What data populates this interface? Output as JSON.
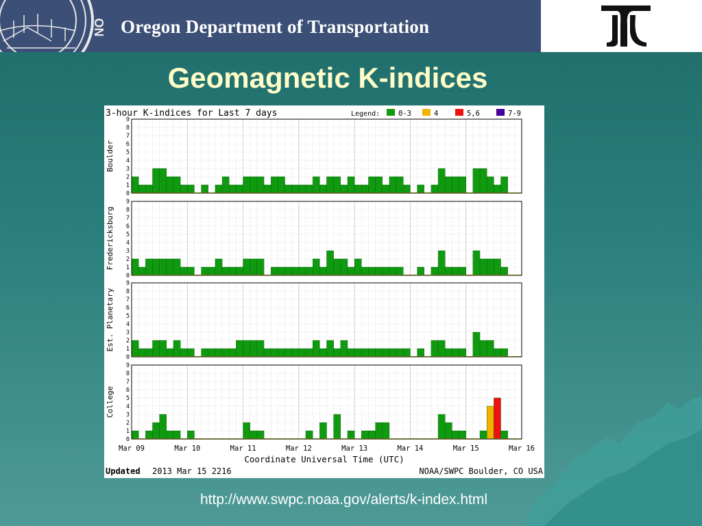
{
  "header": {
    "seal_text": "ON",
    "agency": "Oregon Department of Transportation"
  },
  "slide": {
    "title": "Geomagnetic K-indices",
    "url": "http://www.swpc.noaa.gov/alerts/k-index.html"
  },
  "chart_data": {
    "type": "bar",
    "title": "3-hour K-indices for Last 7 days",
    "legend_label": "Legend:",
    "legend": [
      {
        "label": "0-3",
        "color": "#109a10"
      },
      {
        "label": "4",
        "color": "#f0b400"
      },
      {
        "label": "5,6",
        "color": "#ee1111"
      },
      {
        "label": "7-9",
        "color": "#440099"
      }
    ],
    "legend_placement": "top-right",
    "ylim": [
      0,
      9
    ],
    "y_ticks": [
      "0",
      "1",
      "2",
      "3",
      "4",
      "5",
      "6",
      "7",
      "8",
      "9"
    ],
    "x_tick_labels": [
      "Mar 09",
      "Mar 10",
      "Mar 11",
      "Mar 12",
      "Mar 13",
      "Mar 14",
      "Mar 15",
      "Mar 16"
    ],
    "xlabel": "Coordinate Universal Time (UTC)",
    "grid": true,
    "intervals_per_day": 8,
    "panels": [
      {
        "station": "Boulder",
        "values": [
          2,
          1,
          1,
          3,
          3,
          2,
          2,
          1,
          1,
          0,
          1,
          0,
          1,
          2,
          1,
          1,
          2,
          2,
          2,
          1,
          2,
          2,
          1,
          1,
          1,
          1,
          2,
          1,
          2,
          2,
          1,
          2,
          1,
          1,
          2,
          2,
          1,
          2,
          2,
          1,
          0,
          1,
          0,
          1,
          3,
          2,
          2,
          2,
          0,
          3,
          3,
          2,
          1,
          2,
          0,
          0
        ]
      },
      {
        "station": "Fredericksburg",
        "values": [
          2,
          1,
          2,
          2,
          2,
          2,
          2,
          1,
          1,
          0,
          1,
          1,
          2,
          1,
          1,
          1,
          2,
          2,
          2,
          0,
          1,
          1,
          1,
          1,
          1,
          1,
          2,
          1,
          3,
          2,
          2,
          1,
          2,
          1,
          1,
          1,
          1,
          1,
          1,
          0,
          0,
          1,
          0,
          1,
          3,
          1,
          1,
          1,
          0,
          3,
          2,
          2,
          2,
          1,
          0,
          0
        ]
      },
      {
        "station": "Est. Planetary",
        "values": [
          2,
          1,
          1,
          2,
          2,
          1,
          2,
          1,
          1,
          0,
          1,
          1,
          1,
          1,
          1,
          2,
          2,
          2,
          2,
          1,
          1,
          1,
          1,
          1,
          1,
          1,
          2,
          1,
          2,
          1,
          2,
          1,
          1,
          1,
          1,
          1,
          1,
          1,
          1,
          1,
          0,
          1,
          0,
          2,
          2,
          1,
          1,
          1,
          0,
          3,
          2,
          2,
          1,
          1,
          0,
          0
        ]
      },
      {
        "station": "College",
        "values": [
          1,
          0,
          1,
          2,
          3,
          1,
          1,
          0,
          1,
          0,
          0,
          0,
          0,
          0,
          0,
          0,
          2,
          1,
          1,
          0,
          0,
          0,
          0,
          0,
          0,
          1,
          0,
          2,
          0,
          3,
          0,
          1,
          0,
          1,
          1,
          2,
          2,
          0,
          0,
          0,
          0,
          0,
          0,
          0,
          3,
          2,
          1,
          1,
          0,
          0,
          1,
          4,
          5,
          1,
          0,
          0
        ]
      }
    ]
  },
  "footer": {
    "updated_label": "Updated",
    "updated_value": "2013 Mar 15 2216",
    "source": "NOAA/SWPC Boulder, CO USA"
  }
}
